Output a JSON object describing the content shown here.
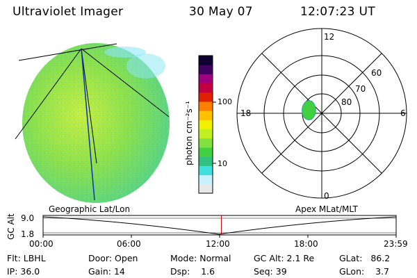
{
  "header": {
    "instrument": "Ultraviolet Imager",
    "date": "30 May 07",
    "time": "12:07:23 UT"
  },
  "colorbar": {
    "unit_label": "photon cm⁻²s⁻¹",
    "ticks": [
      "100",
      "10"
    ],
    "scale": "log",
    "colors": [
      "#e8e8e8",
      "#c8f0ff",
      "#40e0e0",
      "#30c080",
      "#40d040",
      "#80e040",
      "#c0f020",
      "#f0f000",
      "#ffc000",
      "#ff8000",
      "#e02000",
      "#c00040",
      "#a00080",
      "#400060",
      "#100030"
    ]
  },
  "polar_plot": {
    "mlt_labels": {
      "top": "12",
      "left": "18",
      "right": "6",
      "bottom": "0"
    },
    "lat_labels": [
      "60",
      "70",
      "80"
    ],
    "aurora_color": "#40d040"
  },
  "altitude_plot": {
    "left_title": "Geographic Lat/Lon",
    "right_title": "Apex MLat/MLT",
    "ylabel": "GC Alt",
    "yticks": [
      "9.0",
      "1.8"
    ],
    "xticks": [
      "00:00",
      "06:00",
      "12:00",
      "18:00",
      "23:59"
    ],
    "marker_time_fraction": 0.505,
    "marker_color": "#c00000"
  },
  "info": {
    "row1": [
      {
        "label": "Flt:",
        "value": "LBHL"
      },
      {
        "label": "Door:",
        "value": "Open"
      },
      {
        "label": "Mode:",
        "value": "Normal"
      },
      {
        "label": "GC Alt:",
        "value": "2.1 Re"
      },
      {
        "label": "GLat:",
        "value": "86.2"
      }
    ],
    "row2": [
      {
        "label": "IP:",
        "value": "36.0"
      },
      {
        "label": "Gain:",
        "value": "14"
      },
      {
        "label": "Dsp:",
        "value": "1.6"
      },
      {
        "label": "Seq:",
        "value": "39"
      },
      {
        "label": "GLon:",
        "value": "3.7"
      }
    ]
  }
}
